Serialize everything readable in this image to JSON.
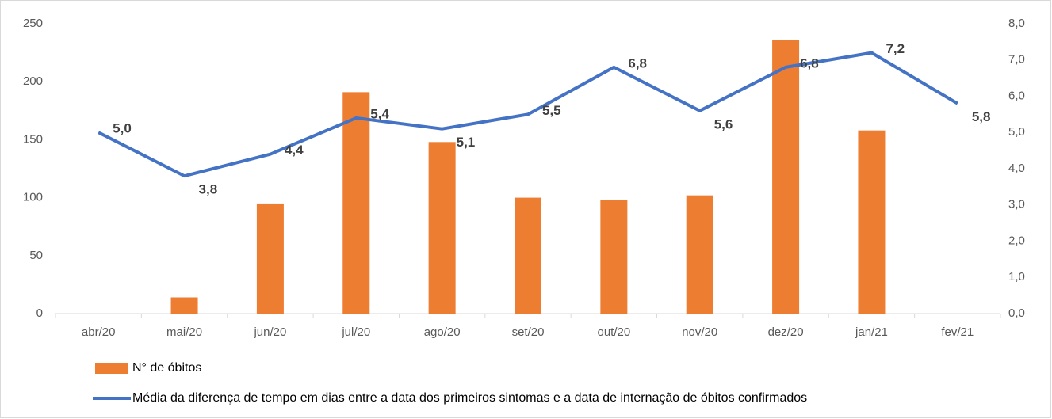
{
  "chart_data": {
    "type": "combo",
    "categories": [
      "abr/20",
      "mai/20",
      "jun/20",
      "jul/20",
      "ago/20",
      "set/20",
      "out/20",
      "nov/20",
      "dez/20",
      "jan/21",
      "fev/21"
    ],
    "series": [
      {
        "name": "N° de óbitos",
        "type": "bar",
        "color": "#ed7d31",
        "values": [
          0,
          14,
          95,
          191,
          148,
          100,
          98,
          102,
          236,
          158,
          0
        ]
      },
      {
        "name": "Média da diferença de tempo em dias entre a data dos primeiros sintomas e a data de internação de óbitos confirmados",
        "type": "line",
        "axis": "y2",
        "color": "#4472c4",
        "values": [
          5.0,
          3.8,
          4.4,
          5.4,
          5.1,
          5.5,
          6.8,
          5.6,
          6.8,
          7.2,
          5.8
        ],
        "value_labels": [
          "5,0",
          "3,8",
          "4,4",
          "5,4",
          "5,1",
          "5,5",
          "6,8",
          "5,6",
          "6,8",
          "7,2",
          "5,8"
        ]
      }
    ],
    "ylim": [
      0,
      250
    ],
    "yticks": [
      0,
      50,
      100,
      150,
      200,
      250
    ],
    "y2lim": [
      0,
      8
    ],
    "y2ticks": [
      {
        "value": 0,
        "label": "0,0"
      },
      {
        "value": 1,
        "label": "1,0"
      },
      {
        "value": 2,
        "label": "2,0"
      },
      {
        "value": 3,
        "label": "3,0"
      },
      {
        "value": 4,
        "label": "4,0"
      },
      {
        "value": 5,
        "label": "5,0"
      },
      {
        "value": 6,
        "label": "6,0"
      },
      {
        "value": 7,
        "label": "7,0"
      },
      {
        "value": 8,
        "label": "8,0"
      }
    ],
    "grid": false,
    "legend": "bottom"
  }
}
